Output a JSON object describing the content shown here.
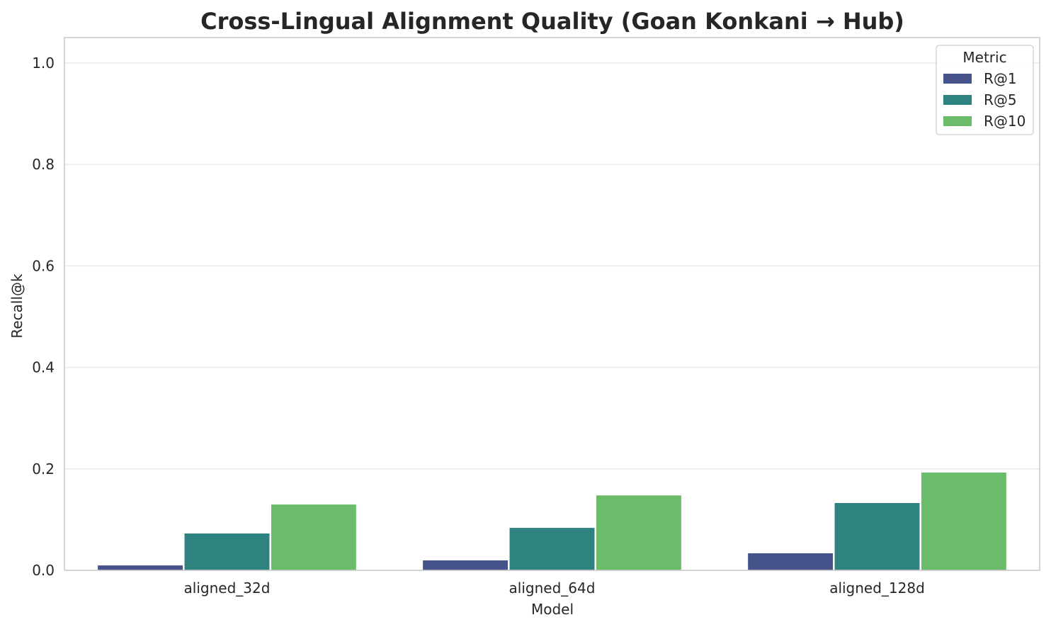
{
  "chart_data": {
    "type": "bar",
    "title": "Cross-Lingual Alignment Quality (Goan Konkani → Hub)",
    "xlabel": "Model",
    "ylabel": "Recall@k",
    "categories": [
      "aligned_32d",
      "aligned_64d",
      "aligned_128d"
    ],
    "series": [
      {
        "name": "R@1",
        "color": "#46528a",
        "values": [
          0.01,
          0.02,
          0.034
        ]
      },
      {
        "name": "R@5",
        "color": "#2e8380",
        "values": [
          0.073,
          0.084,
          0.133
        ]
      },
      {
        "name": "R@10",
        "color": "#6abb6a",
        "values": [
          0.13,
          0.148,
          0.193
        ]
      }
    ],
    "ylim": [
      0,
      1.05
    ],
    "yticks": [
      0.0,
      0.2,
      0.4,
      0.6,
      0.8,
      1.0
    ],
    "ytick_labels": [
      "0.0",
      "0.2",
      "0.4",
      "0.6",
      "0.8",
      "1.0"
    ],
    "grid": true,
    "legend": {
      "title": "Metric",
      "placement": "top-right"
    }
  }
}
